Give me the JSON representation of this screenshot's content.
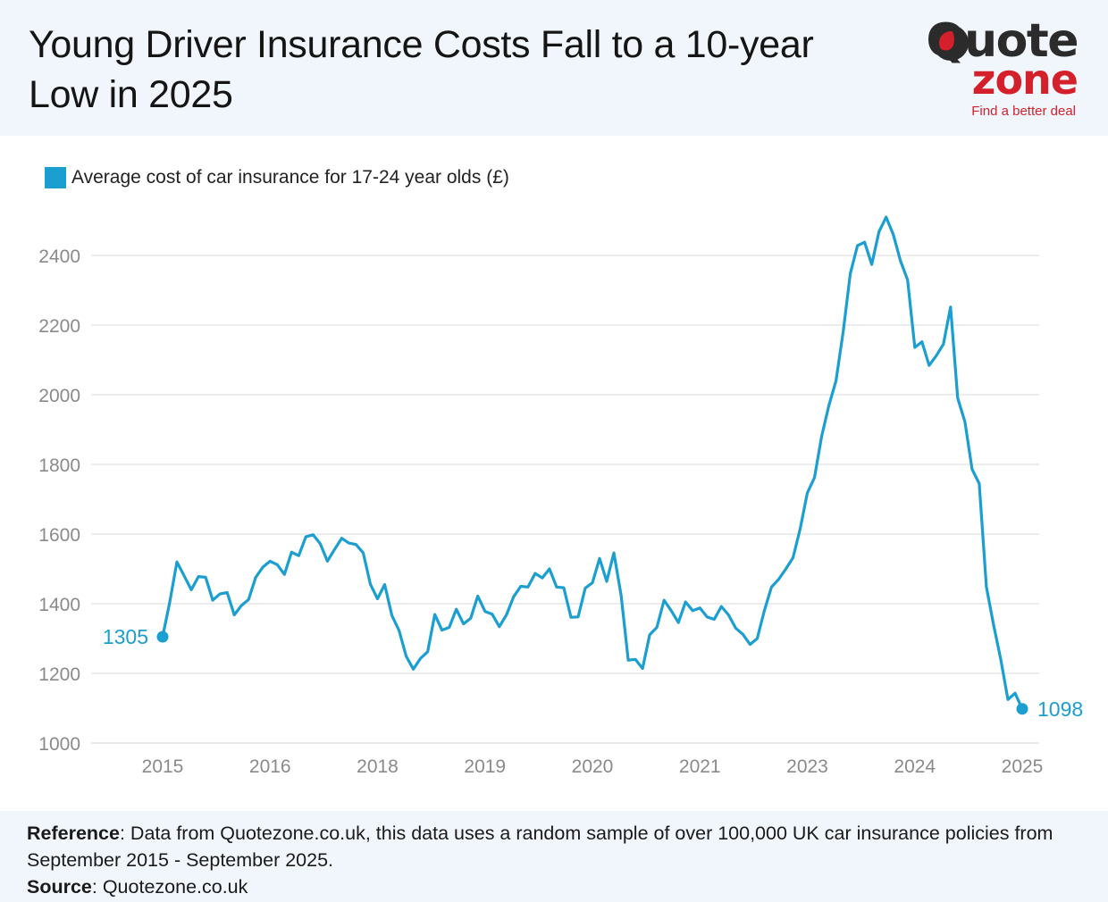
{
  "title": "Young Driver Insurance Costs Fall to a 10-year Low in 2025",
  "logo": {
    "word1": "Quote",
    "word2": "zone",
    "tagline": "Find a better deal"
  },
  "colors": {
    "series": "#1b9ed0",
    "header_bg": "#f1f6fc",
    "grid": "#e2e2e2",
    "brand_red": "#d3202a"
  },
  "chart_data": {
    "type": "line",
    "legend": "Average cost of car insurance for 17-24 year olds (£)",
    "legend_placement": "top-left",
    "grid": true,
    "ylim": [
      1000,
      2400
    ],
    "y_ticks": [
      1000,
      1200,
      1400,
      1600,
      1800,
      2000,
      2200,
      2400
    ],
    "x_tick_labels": [
      "2015",
      "2016",
      "2018",
      "2019",
      "2020",
      "2021",
      "2023",
      "2024",
      "2025"
    ],
    "start_label": "1305",
    "end_label": "1098",
    "series": [
      {
        "name": "Average cost of car insurance for 17-24 year olds (£)",
        "values": [
          1305,
          1405,
          1520,
          1480,
          1440,
          1478,
          1476,
          1410,
          1428,
          1432,
          1368,
          1395,
          1412,
          1476,
          1505,
          1522,
          1512,
          1484,
          1548,
          1538,
          1592,
          1598,
          1572,
          1522,
          1556,
          1588,
          1574,
          1570,
          1546,
          1456,
          1414,
          1455,
          1367,
          1323,
          1249,
          1212,
          1243,
          1262,
          1369,
          1324,
          1332,
          1384,
          1342,
          1358,
          1422,
          1378,
          1370,
          1334,
          1368,
          1420,
          1450,
          1448,
          1487,
          1474,
          1500,
          1448,
          1446,
          1361,
          1362,
          1445,
          1460,
          1530,
          1464,
          1546,
          1424,
          1238,
          1240,
          1214,
          1311,
          1332,
          1410,
          1380,
          1346,
          1405,
          1380,
          1388,
          1362,
          1355,
          1392,
          1368,
          1330,
          1312,
          1283,
          1300,
          1380,
          1448,
          1470,
          1500,
          1532,
          1615,
          1718,
          1762,
          1880,
          1968,
          2040,
          2180,
          2348,
          2428,
          2438,
          2374,
          2468,
          2510,
          2460,
          2385,
          2330,
          2136,
          2152,
          2084,
          2112,
          2145,
          2252,
          1990,
          1922,
          1786,
          1745,
          1448,
          1340,
          1240,
          1125,
          1143,
          1098
        ]
      }
    ]
  },
  "footer": {
    "reference_label": "Reference",
    "reference_text": ": Data from Quotezone.co.uk, this data uses a random sample of over 100,000 UK car insurance policies from September 2015 - September 2025.",
    "source_label": "Source",
    "source_text": ": Quotezone.co.uk"
  }
}
